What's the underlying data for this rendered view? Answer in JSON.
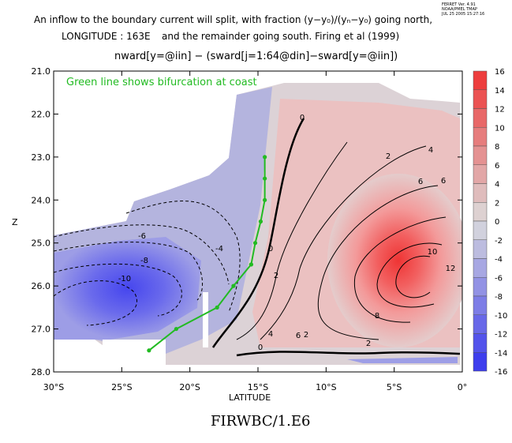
{
  "header": {
    "line1": "An inflow to the boundary current will split, with fraction (y−y₀)/(yₙ−y₀) going north,",
    "longitude_label": "LONGITUDE : 163E",
    "line2": "and the remainder going south.  Firing et al (1999)",
    "ferret_stamp": [
      "FERRET Ver. 4.91",
      "NOAA/PMEL TMAP",
      "JUL 25 2005 15:27:16"
    ]
  },
  "plot_title": "nward[y=@iin] − (sward[j=1:64@din]−sward[y=@iin])",
  "annotation": "Green line shows bifurcation at coast",
  "footer": "FIRWBC/1.E6",
  "colors": {
    "positive": "#ee3333",
    "negative": "#3333ee",
    "bifurcation": "#22bb22"
  },
  "chart_data": {
    "type": "contour",
    "xlabel": "LATITUDE",
    "ylabel": "Z",
    "xlim": [
      -30,
      0
    ],
    "ylim": [
      28.0,
      21.0
    ],
    "x_ticks": [
      "30°S",
      "25°S",
      "20°S",
      "15°S",
      "10°S",
      "5°S",
      "0°"
    ],
    "y_ticks": [
      "21.0",
      "22.0",
      "23.0",
      "24.0",
      "25.0",
      "26.0",
      "27.0",
      "28.0"
    ],
    "colorbar": {
      "min": -16,
      "max": 16,
      "labels": [
        "16",
        "14",
        "12",
        "10",
        "8",
        "6",
        "4",
        "2",
        "0",
        "-2",
        "-4",
        "-6",
        "-8",
        "-10",
        "-12",
        "-14",
        "-16"
      ]
    },
    "contour_labels": [
      "0",
      "2",
      "4",
      "6",
      "6",
      "2",
      "-6",
      "-8",
      "-10",
      "-4",
      "0",
      "2",
      "4",
      "6",
      "8",
      "10",
      "12",
      "2",
      "0"
    ],
    "bifurcation_line": {
      "lat": [
        -14.5,
        -14.5,
        -14.5,
        -14.8,
        -15.2,
        -15.5,
        -15.5,
        -16.8,
        -18.0,
        -21.0,
        -23.0
      ],
      "z": [
        23.0,
        23.5,
        24.0,
        24.5,
        25.0,
        25.5,
        25.5,
        26.0,
        26.5,
        27.0,
        27.5
      ]
    }
  }
}
